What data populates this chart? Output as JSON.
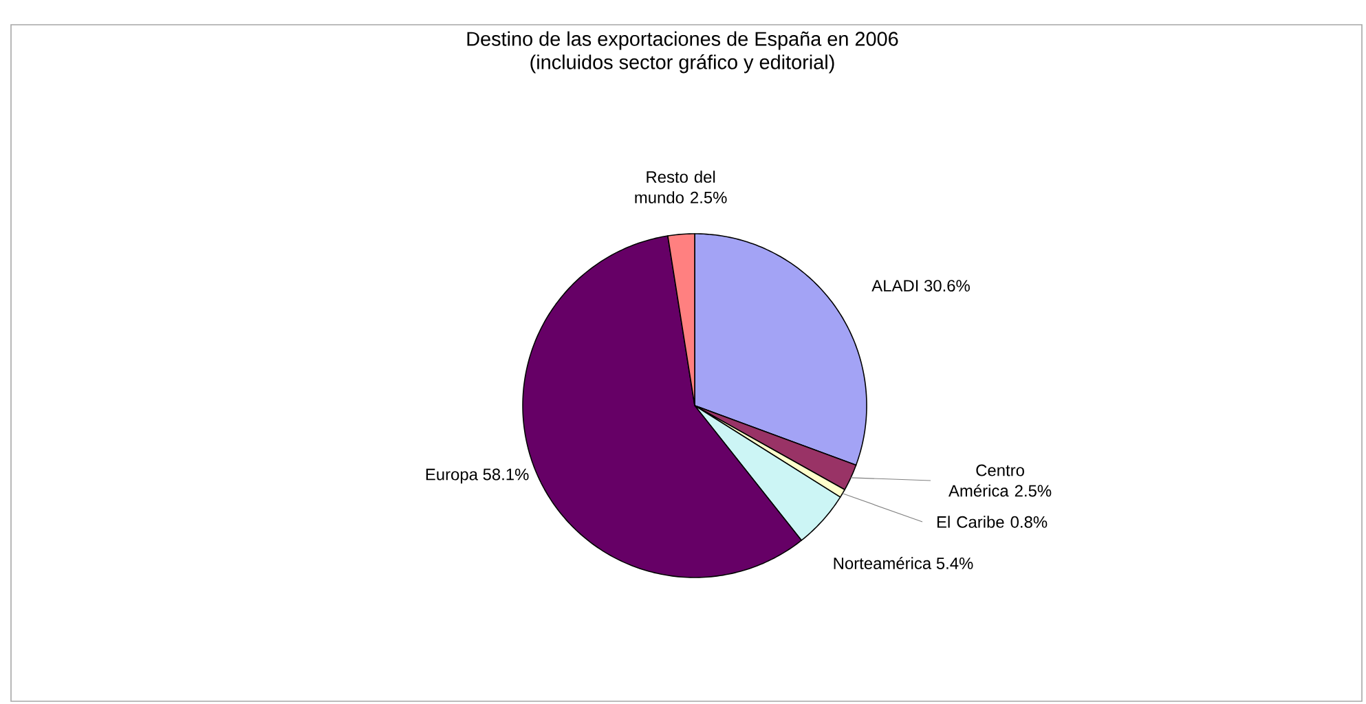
{
  "chart_data": {
    "type": "pie",
    "title": "Destino de las exportaciones de España en 2006",
    "subtitle": "(incluidos sector gráfico y editorial)",
    "categories": [
      "ALADI",
      "Centro América",
      "El Caribe",
      "Norteamérica",
      "Europa",
      "Resto del mundo"
    ],
    "values": [
      30.6,
      2.5,
      0.8,
      5.4,
      58.1,
      2.5
    ],
    "value_labels": [
      "30.6%",
      "2.5%",
      "0.8%",
      "5.4%",
      "58.1%",
      "2.5%"
    ],
    "colors": [
      "#a3a3f5",
      "#993366",
      "#ffffcc",
      "#ccf5f5",
      "#660066",
      "#ff8080"
    ]
  }
}
